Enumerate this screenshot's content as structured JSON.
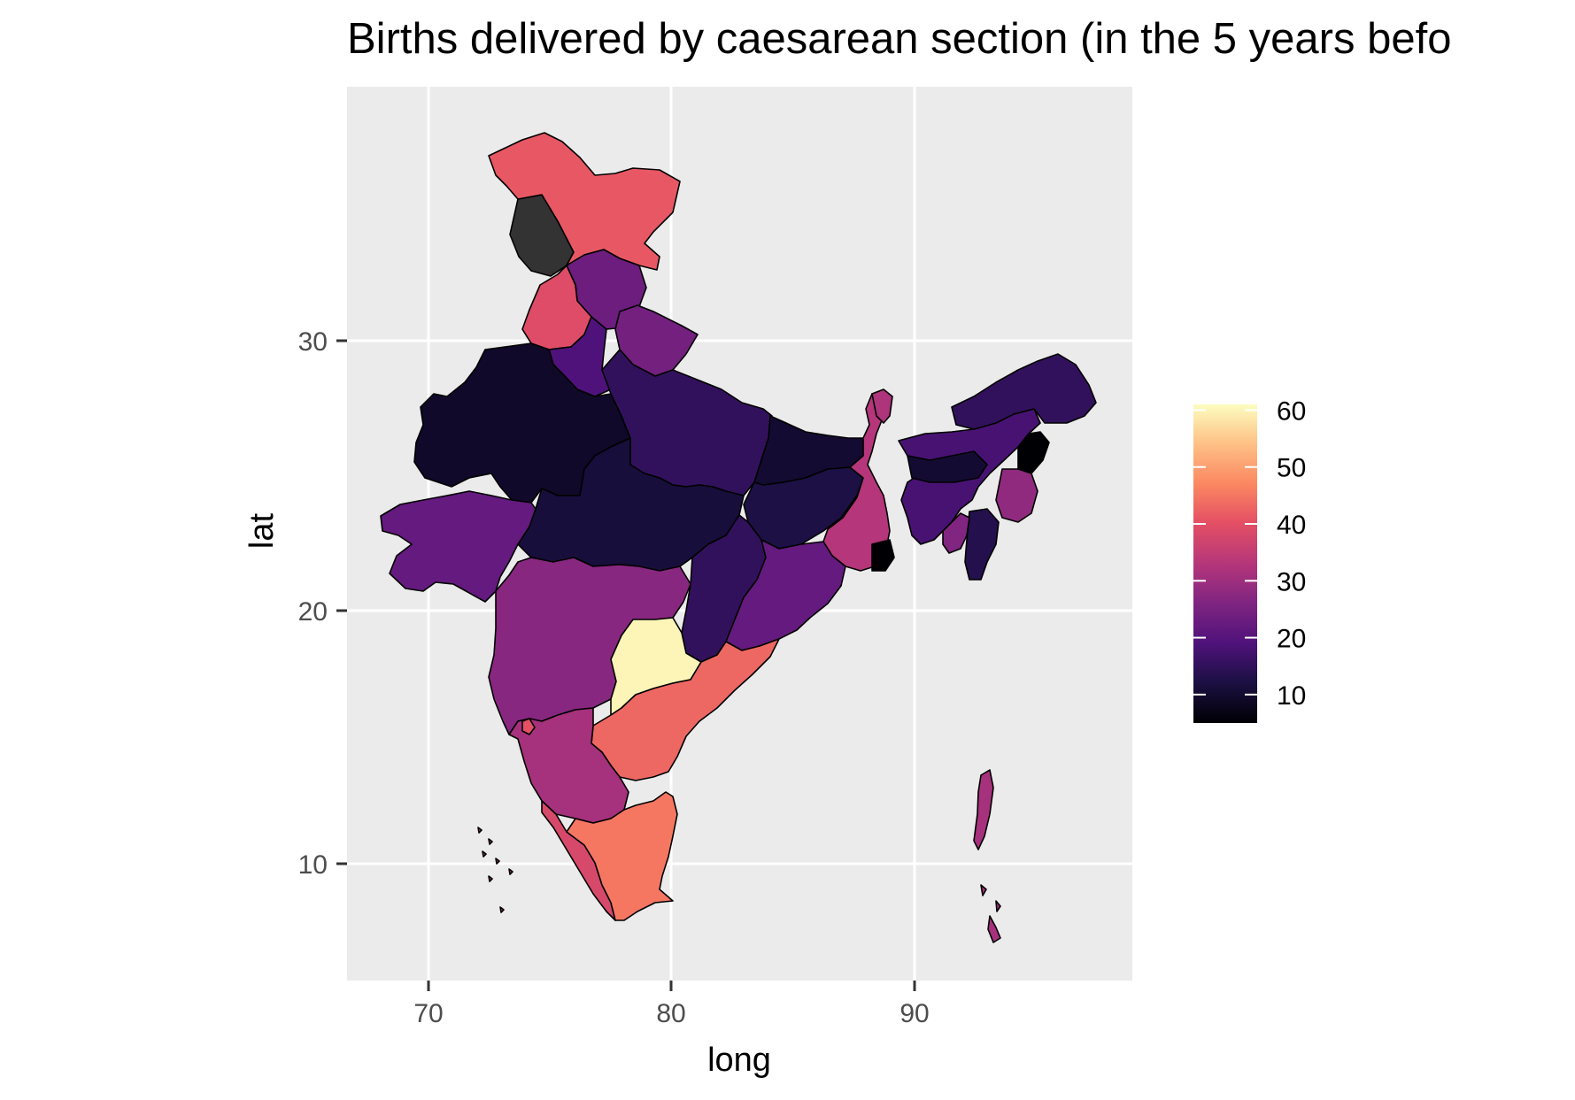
{
  "title": "Births delivered by caesarean section (in the 5 years befo",
  "colors": {
    "panel": "#ebebeb",
    "grid": "#ffffff",
    "missing": "#333333",
    "border": "#000000"
  },
  "chart_data": {
    "type": "choropleth",
    "xlabel": "long",
    "ylabel": "lat",
    "xlim": [
      66.7,
      98.9
    ],
    "ylim": [
      5.4,
      38.4
    ],
    "x_ticks": [
      {
        "value": 70,
        "label": "70"
      },
      {
        "value": 80,
        "label": "80"
      },
      {
        "value": 90,
        "label": "90"
      }
    ],
    "y_ticks": [
      {
        "value": 10,
        "label": "10"
      },
      {
        "value": 20,
        "label": "20"
      },
      {
        "value": 30,
        "label": "30"
      }
    ],
    "grid": true,
    "legend": {
      "position": "right",
      "palette": "magma",
      "min": 5,
      "max": 61,
      "ticks": [
        {
          "value": 10,
          "label": "10"
        },
        {
          "value": 20,
          "label": "20"
        },
        {
          "value": 30,
          "label": "30"
        },
        {
          "value": 40,
          "label": "40"
        },
        {
          "value": 50,
          "label": "50"
        },
        {
          "value": 60,
          "label": "60"
        }
      ]
    },
    "regions": [
      {
        "id": "ladakh",
        "value": null
      },
      {
        "id": "jammu-kashmir",
        "value": 41
      },
      {
        "id": "himachal-pradesh",
        "value": 23
      },
      {
        "id": "punjab",
        "value": 39
      },
      {
        "id": "uttarakhand",
        "value": 24
      },
      {
        "id": "haryana",
        "value": 19
      },
      {
        "id": "rajasthan",
        "value": 9
      },
      {
        "id": "uttar-pradesh",
        "value": 15
      },
      {
        "id": "madhya-pradesh",
        "value": 11
      },
      {
        "id": "gujarat",
        "value": 22
      },
      {
        "id": "maharashtra",
        "value": 27
      },
      {
        "id": "bihar",
        "value": 10
      },
      {
        "id": "jharkhand",
        "value": 12
      },
      {
        "id": "west-bengal",
        "value": 33
      },
      {
        "id": "chhattisgarh",
        "value": 15
      },
      {
        "id": "odisha",
        "value": 22
      },
      {
        "id": "telangana",
        "value": 60
      },
      {
        "id": "andhra-pradesh",
        "value": 43
      },
      {
        "id": "karnataka",
        "value": 31
      },
      {
        "id": "goa",
        "value": 40
      },
      {
        "id": "kerala",
        "value": 38
      },
      {
        "id": "tamil-nadu",
        "value": 45
      },
      {
        "id": "sikkim",
        "value": 32
      },
      {
        "id": "assam",
        "value": 18
      },
      {
        "id": "arunachal-pradesh",
        "value": 15
      },
      {
        "id": "meghalaya",
        "value": 10
      },
      {
        "id": "nagaland",
        "value": 5
      },
      {
        "id": "manipur",
        "value": 28
      },
      {
        "id": "mizoram",
        "value": 13
      },
      {
        "id": "tripura",
        "value": 26
      },
      {
        "id": "andaman-nicobar",
        "value": 31
      },
      {
        "id": "lakshadweep",
        "value": 35
      }
    ]
  }
}
